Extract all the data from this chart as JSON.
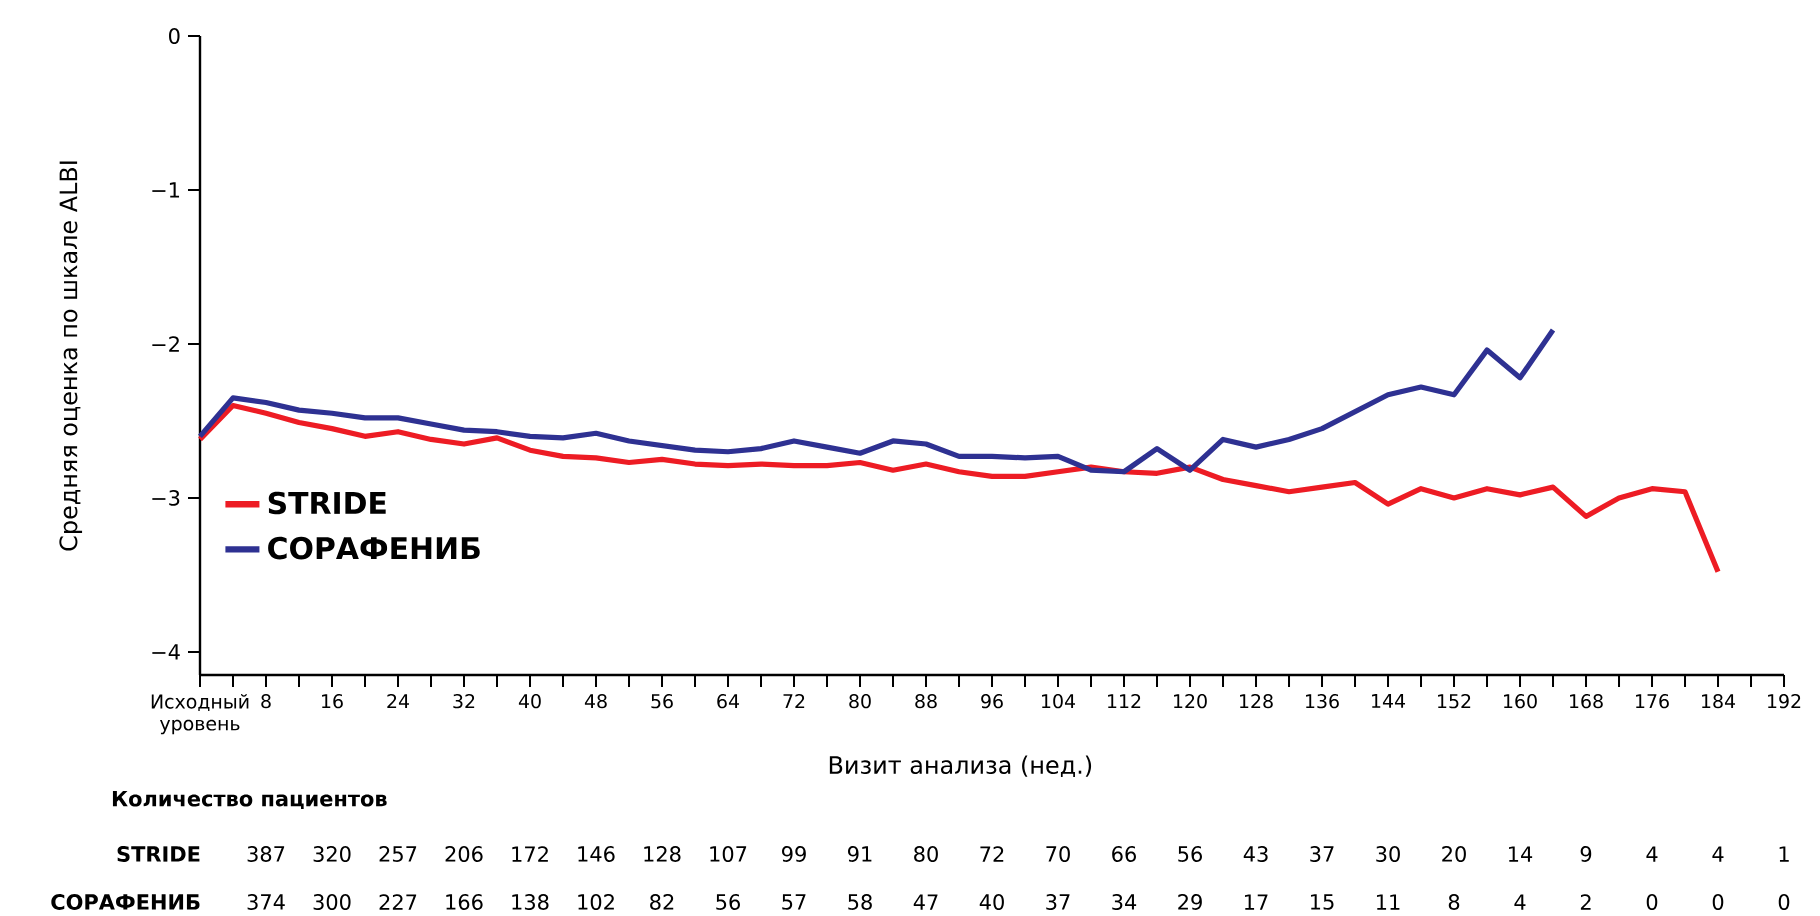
{
  "chart_data": {
    "type": "line",
    "xlabel": "Визит анализа (нед.)",
    "ylabel": "Средняя оценка по шкале ALBI",
    "xlim": [
      0,
      192
    ],
    "ylim": [
      -4.15,
      0
    ],
    "xticks": [
      {
        "value": 0,
        "label": "Исходный уровень"
      },
      {
        "value": 4,
        "label": null
      },
      8,
      {
        "value": 12,
        "label": null
      },
      16,
      {
        "value": 20,
        "label": null
      },
      24,
      {
        "value": 28,
        "label": null
      },
      32,
      {
        "value": 36,
        "label": null
      },
      40,
      {
        "value": 44,
        "label": null
      },
      48,
      {
        "value": 52,
        "label": null
      },
      56,
      {
        "value": 60,
        "label": null
      },
      64,
      {
        "value": 68,
        "label": null
      },
      72,
      {
        "value": 76,
        "label": null
      },
      80,
      {
        "value": 84,
        "label": null
      },
      88,
      {
        "value": 92,
        "label": null
      },
      96,
      {
        "value": 100,
        "label": null
      },
      104,
      {
        "value": 108,
        "label": null
      },
      112,
      {
        "value": 116,
        "label": null
      },
      120,
      {
        "value": 124,
        "label": null
      },
      128,
      {
        "value": 132,
        "label": null
      },
      136,
      {
        "value": 140,
        "label": null
      },
      144,
      {
        "value": 148,
        "label": null
      },
      152,
      {
        "value": 156,
        "label": null
      },
      160,
      {
        "value": 164,
        "label": null
      },
      168,
      {
        "value": 172,
        "label": null
      },
      176,
      {
        "value": 180,
        "label": null
      },
      184,
      {
        "value": 188,
        "label": null
      },
      192
    ],
    "yticks": [
      0,
      {
        "value": -1,
        "label": "−1"
      },
      {
        "value": -2,
        "label": "−2"
      },
      {
        "value": -3,
        "label": "−3"
      },
      {
        "value": -4,
        "label": "−4"
      }
    ],
    "legend": "bottom left",
    "line_style": "solid",
    "marker": "none",
    "x": [
      0,
      4,
      8,
      12,
      16,
      20,
      24,
      28,
      32,
      36,
      40,
      44,
      48,
      52,
      56,
      60,
      64,
      68,
      72,
      76,
      80,
      84,
      88,
      92,
      96,
      100,
      104,
      108,
      112,
      116,
      120,
      124,
      128,
      132,
      136,
      140,
      144,
      148,
      152,
      156,
      160,
      164,
      168,
      172,
      176,
      180,
      184
    ],
    "series": [
      {
        "name": "STRIDE",
        "color": "#ed1c24",
        "values": [
          -2.62,
          -2.4,
          -2.45,
          -2.51,
          -2.55,
          -2.6,
          -2.57,
          -2.62,
          -2.65,
          -2.61,
          -2.69,
          -2.73,
          -2.74,
          -2.77,
          -2.75,
          -2.78,
          -2.79,
          -2.78,
          -2.79,
          -2.79,
          -2.77,
          -2.82,
          -2.78,
          -2.83,
          -2.86,
          -2.86,
          -2.83,
          -2.8,
          -2.83,
          -2.84,
          -2.8,
          -2.88,
          -2.92,
          -2.96,
          -2.93,
          -2.9,
          -3.04,
          -2.94,
          -3.0,
          -2.94,
          -2.98,
          -2.93,
          -3.12,
          -3.0,
          -2.94,
          -2.96,
          -3.48
        ]
      },
      {
        "name": "СОРАФЕНИБ",
        "color": "#2e3192",
        "values": [
          -2.6,
          -2.35,
          -2.38,
          -2.43,
          -2.45,
          -2.48,
          -2.48,
          -2.52,
          -2.56,
          -2.57,
          -2.6,
          -2.61,
          -2.58,
          -2.63,
          -2.66,
          -2.69,
          -2.7,
          -2.68,
          -2.63,
          -2.67,
          -2.71,
          -2.63,
          -2.65,
          -2.73,
          -2.73,
          -2.74,
          -2.73,
          -2.82,
          -2.83,
          -2.68,
          -2.82,
          -2.62,
          -2.67,
          -2.62,
          -2.55,
          -2.44,
          -2.33,
          -2.28,
          -2.33,
          -2.04,
          -2.22,
          -1.91,
          null,
          null,
          null,
          null,
          null
        ]
      }
    ],
    "annotations": [
      "Количество пациентов",
      "387",
      "320",
      "257",
      "206",
      "172",
      "146",
      "128",
      "107",
      "99",
      "91",
      "80",
      "72",
      "70",
      "66",
      "56",
      "43",
      "37",
      "30",
      "20",
      "14",
      "9",
      "4",
      "4",
      "1",
      "374",
      "300",
      "227",
      "166",
      "138",
      "102",
      "82",
      "56",
      "57",
      "58",
      "47",
      "40",
      "37",
      "34",
      "29",
      "17",
      "15",
      "11",
      "8",
      "4",
      "2",
      "0",
      "0",
      "0"
    ]
  }
}
